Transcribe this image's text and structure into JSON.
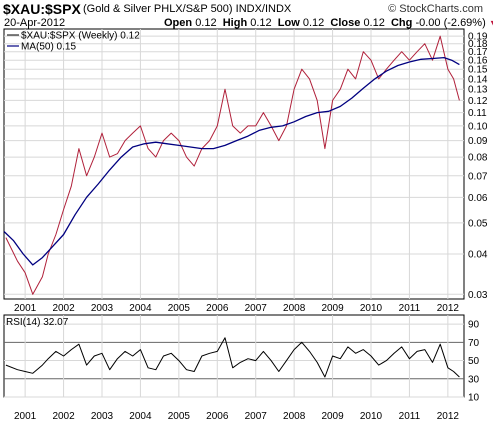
{
  "header": {
    "symbol": "$XAU:$SPX",
    "description": "(Gold & Silver PHLX/S&P 500)  INDX/INDX",
    "date": "20-Apr-2012",
    "open_label": "Open",
    "open": "0.12",
    "high_label": "High",
    "high": "0.12",
    "low_label": "Low",
    "low": "0.12",
    "close_label": "Close",
    "close": "0.12",
    "chg_label": "Chg",
    "chg": "-0.00 (-2.69%)",
    "chg_arrow": "▼",
    "brand": "© StockCharts.com"
  },
  "colors": {
    "price": "#b0203a",
    "ma": "#000080",
    "rsi": "#000000",
    "down": "#c0143c"
  },
  "chart_data": [
    {
      "type": "line",
      "title": "$XAU:$SPX (Gold & Silver PHLX/S&P 500) INDX/INDX",
      "scale": "log",
      "legend": "top-left",
      "grid": true,
      "ylim": [
        0.029,
        0.2
      ],
      "y_ticks": [
        "0.19",
        "0.18",
        "0.17",
        "0.16",
        "0.15",
        "0.14",
        "0.13",
        "0.12",
        "0.11",
        "0.10",
        "0.09",
        "0.08",
        "0.07",
        "0.06",
        "0.05",
        "0.04",
        "0.03"
      ],
      "x_ticks": [
        "2001",
        "2002",
        "2003",
        "2004",
        "2005",
        "2006",
        "2007",
        "2008",
        "2009",
        "2010",
        "2011",
        "2012"
      ],
      "series": [
        {
          "name": "$XAU:$SPX (Weekly) 0.12",
          "x": [
            2000.5,
            2000.8,
            2001.0,
            2001.2,
            2001.45,
            2001.6,
            2001.8,
            2002.0,
            2002.2,
            2002.4,
            2002.6,
            2002.8,
            2003.0,
            2003.2,
            2003.4,
            2003.6,
            2003.8,
            2004.0,
            2004.2,
            2004.4,
            2004.6,
            2004.8,
            2005.0,
            2005.2,
            2005.4,
            2005.6,
            2005.8,
            2006.0,
            2006.2,
            2006.4,
            2006.6,
            2006.8,
            2007.0,
            2007.2,
            2007.4,
            2007.6,
            2007.8,
            2008.0,
            2008.2,
            2008.4,
            2008.6,
            2008.8,
            2009.0,
            2009.2,
            2009.4,
            2009.6,
            2009.8,
            2010.0,
            2010.2,
            2010.4,
            2010.6,
            2010.8,
            2011.0,
            2011.2,
            2011.4,
            2011.6,
            2011.8,
            2012.0,
            2012.15,
            2012.3
          ],
          "values": [
            0.045,
            0.038,
            0.035,
            0.03,
            0.034,
            0.04,
            0.046,
            0.055,
            0.065,
            0.085,
            0.07,
            0.08,
            0.095,
            0.08,
            0.082,
            0.09,
            0.095,
            0.1,
            0.085,
            0.08,
            0.09,
            0.095,
            0.09,
            0.08,
            0.075,
            0.085,
            0.09,
            0.1,
            0.13,
            0.1,
            0.095,
            0.1,
            0.1,
            0.11,
            0.1,
            0.09,
            0.1,
            0.13,
            0.15,
            0.14,
            0.12,
            0.085,
            0.12,
            0.13,
            0.15,
            0.14,
            0.17,
            0.16,
            0.14,
            0.15,
            0.16,
            0.17,
            0.16,
            0.17,
            0.18,
            0.16,
            0.19,
            0.15,
            0.14,
            0.12
          ]
        },
        {
          "name": "MA(50) 0.15",
          "x": [
            2000.45,
            2000.7,
            2000.95,
            2001.2,
            2001.45,
            2001.7,
            2002.0,
            2002.3,
            2002.6,
            2002.9,
            2003.2,
            2003.5,
            2003.8,
            2004.1,
            2004.4,
            2004.7,
            2005.0,
            2005.3,
            2005.6,
            2005.9,
            2006.2,
            2006.5,
            2006.8,
            2007.1,
            2007.4,
            2007.7,
            2008.0,
            2008.3,
            2008.6,
            2008.9,
            2009.2,
            2009.5,
            2009.8,
            2010.1,
            2010.4,
            2010.7,
            2011.0,
            2011.3,
            2011.6,
            2011.9,
            2012.1,
            2012.3
          ],
          "values": [
            0.047,
            0.044,
            0.04,
            0.037,
            0.039,
            0.042,
            0.046,
            0.053,
            0.06,
            0.066,
            0.073,
            0.08,
            0.086,
            0.088,
            0.089,
            0.088,
            0.087,
            0.086,
            0.085,
            0.085,
            0.087,
            0.09,
            0.093,
            0.097,
            0.099,
            0.1,
            0.103,
            0.107,
            0.11,
            0.111,
            0.115,
            0.122,
            0.131,
            0.14,
            0.148,
            0.154,
            0.158,
            0.161,
            0.162,
            0.163,
            0.16,
            0.155
          ]
        }
      ]
    },
    {
      "type": "line",
      "title": "RSI(14) 32.07",
      "ylim": [
        10,
        100
      ],
      "y_ticks": [
        "90",
        "70",
        "50",
        "30",
        "10"
      ],
      "reference_lines": [
        70,
        30
      ],
      "x_ticks": [
        "2001",
        "2002",
        "2003",
        "2004",
        "2005",
        "2006",
        "2007",
        "2008",
        "2009",
        "2010",
        "2011",
        "2012"
      ],
      "series": [
        {
          "name": "RSI(14) 32.07",
          "x": [
            2000.5,
            2000.8,
            2001.0,
            2001.2,
            2001.45,
            2001.6,
            2001.8,
            2002.0,
            2002.2,
            2002.4,
            2002.6,
            2002.8,
            2003.0,
            2003.2,
            2003.4,
            2003.6,
            2003.8,
            2004.0,
            2004.2,
            2004.4,
            2004.6,
            2004.8,
            2005.0,
            2005.2,
            2005.4,
            2005.6,
            2005.8,
            2006.0,
            2006.2,
            2006.4,
            2006.6,
            2006.8,
            2007.0,
            2007.2,
            2007.4,
            2007.6,
            2007.8,
            2008.0,
            2008.2,
            2008.4,
            2008.6,
            2008.8,
            2009.0,
            2009.2,
            2009.4,
            2009.6,
            2009.8,
            2010.0,
            2010.2,
            2010.4,
            2010.6,
            2010.8,
            2011.0,
            2011.2,
            2011.4,
            2011.6,
            2011.8,
            2012.0,
            2012.15,
            2012.3
          ],
          "values": [
            45,
            40,
            38,
            36,
            45,
            52,
            60,
            55,
            62,
            68,
            45,
            55,
            58,
            40,
            52,
            60,
            55,
            62,
            42,
            40,
            55,
            58,
            50,
            40,
            38,
            55,
            58,
            60,
            75,
            42,
            48,
            52,
            50,
            60,
            50,
            38,
            50,
            62,
            70,
            60,
            48,
            32,
            55,
            52,
            65,
            58,
            62,
            55,
            45,
            50,
            58,
            65,
            52,
            60,
            62,
            48,
            68,
            42,
            38,
            32
          ]
        }
      ]
    }
  ]
}
